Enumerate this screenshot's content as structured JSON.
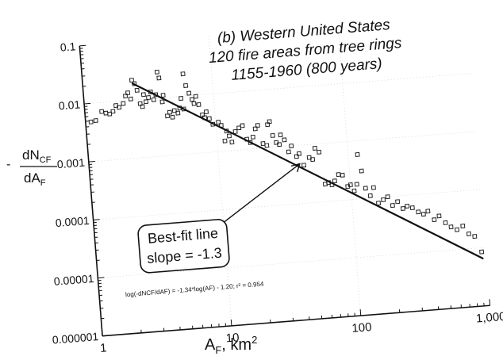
{
  "chart_data": {
    "type": "scatter",
    "title_lines": [
      "(b) Western United States",
      "120 fire areas from tree rings",
      "1155-1960 (800 years)"
    ],
    "xlabel": "AF, km2",
    "ylabel": "dNCF / dAF",
    "x_scale": "log",
    "y_scale": "log",
    "xlim": [
      1,
      1000
    ],
    "ylim": [
      1e-06,
      0.1
    ],
    "x_ticks": [
      {
        "value": 1,
        "label": "1"
      },
      {
        "value": 10,
        "label": "10"
      },
      {
        "value": 100,
        "label": "100"
      },
      {
        "value": 1000,
        "label": "1,000"
      }
    ],
    "y_ticks": [
      {
        "value": 0.1,
        "label": "0.1"
      },
      {
        "value": 0.01,
        "label": "0.01"
      },
      {
        "value": 0.001,
        "label": "0.001"
      },
      {
        "value": 0.0001,
        "label": "0.0001"
      },
      {
        "value": 1e-05,
        "label": "0.00001"
      },
      {
        "value": 1e-06,
        "label": "0.000001"
      }
    ],
    "series": [
      {
        "marker": "open-square",
        "points": [
          [
            1.1,
            0.0048
          ],
          [
            1.2,
            0.005
          ],
          [
            1.35,
            0.007
          ],
          [
            1.45,
            0.0065
          ],
          [
            1.55,
            0.0062
          ],
          [
            1.65,
            0.0068
          ],
          [
            1.75,
            0.0085
          ],
          [
            1.85,
            0.0078
          ],
          [
            2.0,
            0.009
          ],
          [
            2.1,
            0.012
          ],
          [
            2.2,
            0.0135
          ],
          [
            2.3,
            0.0105
          ],
          [
            2.4,
            0.022
          ],
          [
            2.5,
            0.019
          ],
          [
            2.6,
            0.0145
          ],
          [
            2.7,
            0.0085
          ],
          [
            2.8,
            0.0075
          ],
          [
            2.9,
            0.012
          ],
          [
            3.0,
            0.009
          ],
          [
            3.15,
            0.0105
          ],
          [
            3.3,
            0.013
          ],
          [
            3.45,
            0.0095
          ],
          [
            3.6,
            0.0115
          ],
          [
            3.8,
            0.028
          ],
          [
            3.9,
            0.022
          ],
          [
            4.0,
            0.0085
          ],
          [
            4.1,
            0.011
          ],
          [
            4.3,
            0.0048
          ],
          [
            4.5,
            0.0055
          ],
          [
            4.7,
            0.0045
          ],
          [
            4.9,
            0.0058
          ],
          [
            5.2,
            0.0052
          ],
          [
            5.4,
            0.0063
          ],
          [
            5.6,
            0.0092
          ],
          [
            5.8,
            0.006
          ],
          [
            6.0,
            0.024
          ],
          [
            6.2,
            0.015
          ],
          [
            6.5,
            0.011
          ],
          [
            6.8,
            0.0085
          ],
          [
            7.0,
            0.0072
          ],
          [
            7.3,
            0.0095
          ],
          [
            7.6,
            0.0068
          ],
          [
            8.0,
            0.0045
          ],
          [
            8.3,
            0.004
          ],
          [
            8.6,
            0.005
          ],
          [
            9.0,
            0.0038
          ],
          [
            9.5,
            0.003
          ],
          [
            10.5,
            0.0032
          ],
          [
            11.0,
            0.0028
          ],
          [
            11.5,
            0.0015
          ],
          [
            12.0,
            0.0022
          ],
          [
            12.5,
            0.0018
          ],
          [
            13.0,
            0.0014
          ],
          [
            14.0,
            0.0021
          ],
          [
            15.0,
            0.0024
          ],
          [
            16.0,
            0.0026
          ],
          [
            17.0,
            0.0015
          ],
          [
            18.0,
            0.0013
          ],
          [
            19.0,
            0.0016
          ],
          [
            20.0,
            0.0022
          ],
          [
            21.0,
            0.0025
          ],
          [
            22.5,
            0.0012
          ],
          [
            24.0,
            0.0011
          ],
          [
            25.0,
            0.0025
          ],
          [
            26.0,
            0.0028
          ],
          [
            27.0,
            0.0016
          ],
          [
            28.5,
            0.0012
          ],
          [
            30.0,
            0.0011
          ],
          [
            31.0,
            0.0016
          ],
          [
            33.0,
            0.0013
          ],
          [
            35.0,
            0.0008
          ],
          [
            37.0,
            0.001
          ],
          [
            40.0,
            0.00065
          ],
          [
            42.0,
            0.00072
          ],
          [
            45.0,
            0.00045
          ],
          [
            50.0,
            0.0006
          ],
          [
            53.0,
            0.00055
          ],
          [
            56.0,
            0.00085
          ],
          [
            60.0,
            0.00072
          ],
          [
            64.0,
            0.0002
          ],
          [
            68.0,
            0.00021
          ],
          [
            72.0,
            0.00019
          ],
          [
            76.0,
            0.00022
          ],
          [
            82.0,
            0.00028
          ],
          [
            88.0,
            0.00027
          ],
          [
            95.0,
            0.00017
          ],
          [
            100.0,
            0.00018
          ],
          [
            106.0,
            0.00014
          ],
          [
            112.0,
            0.00018
          ],
          [
            118.0,
            0.00058
          ],
          [
            124.0,
            0.0003
          ],
          [
            130.0,
            0.00015
          ],
          [
            140.0,
            0.00011
          ],
          [
            150.0,
            0.00015
          ],
          [
            160.0,
            8e-05
          ],
          [
            175.0,
            9e-05
          ],
          [
            190.0,
            0.0001
          ],
          [
            205.0,
            7e-05
          ],
          [
            225.0,
            8e-05
          ],
          [
            245.0,
            6e-05
          ],
          [
            265.0,
            6.5e-05
          ],
          [
            290.0,
            6e-05
          ],
          [
            320.0,
            5e-05
          ],
          [
            350.0,
            4.5e-05
          ],
          [
            380.0,
            5e-05
          ],
          [
            420.0,
            3.5e-05
          ],
          [
            460.0,
            4e-05
          ],
          [
            510.0,
            3e-05
          ],
          [
            560.0,
            2.5e-05
          ],
          [
            620.0,
            2.2e-05
          ],
          [
            690.0,
            2.5e-05
          ],
          [
            760.0,
            1.8e-05
          ],
          [
            840.0,
            1.6e-05
          ],
          [
            930.0,
            8.5e-06
          ]
        ]
      }
    ],
    "fit_line": {
      "label": "Best-fit line",
      "slope_label": "slope = -1.3",
      "equation": "log(-dNCF/dAF) = -1.34*log(AF) - 1.20; r² = 0.954",
      "x_range": [
        2.4,
        950
      ],
      "slope": -1.34,
      "intercept": -1.2
    }
  }
}
